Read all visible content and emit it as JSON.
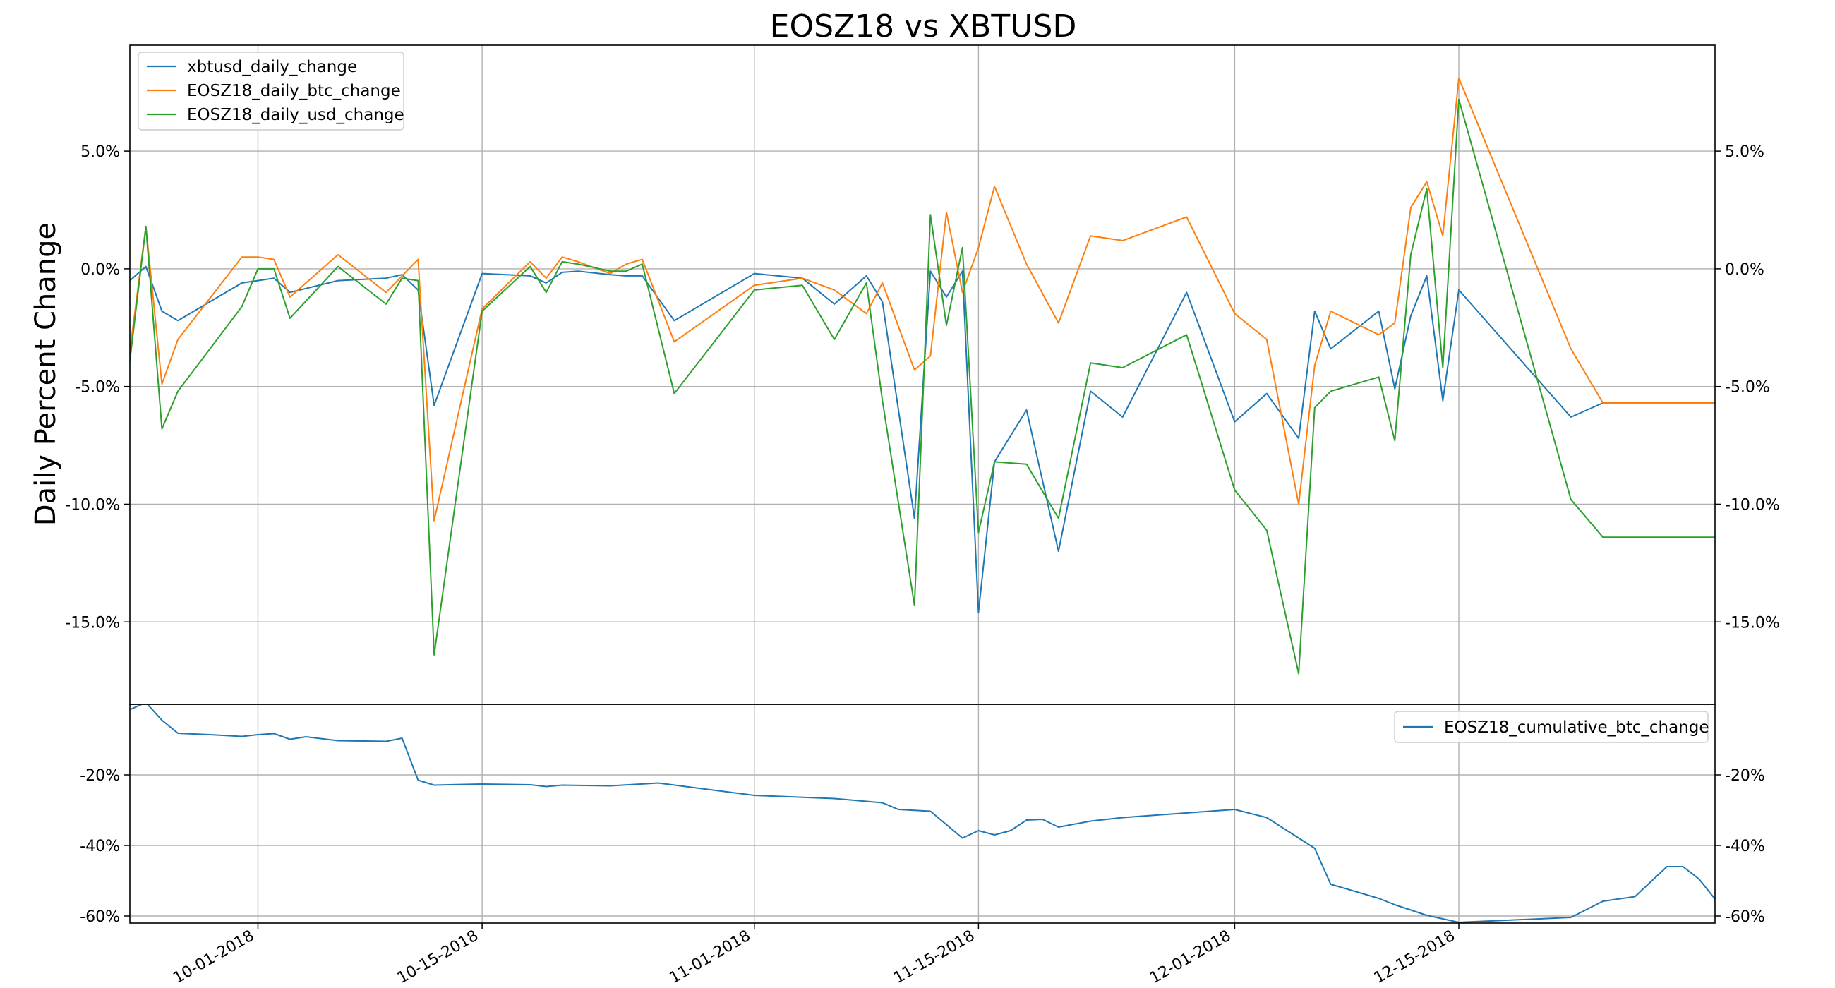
{
  "title": "EOSZ18 vs XBTUSD",
  "ylabel": "Daily Percent Change",
  "colors": {
    "xbtusd_daily_change": "#1f77b4",
    "EOSZ18_daily_btc_change": "#ff7f0e",
    "EOSZ18_daily_usd_change": "#2ca02c",
    "EOSZ18_cumulative_btc_change": "#1f77b4"
  },
  "chart_data": [
    {
      "type": "line",
      "title": "EOSZ18 vs XBTUSD",
      "ylabel": "Daily Percent Change",
      "xlim": [
        "2018-09-23",
        "2018-12-31"
      ],
      "ylim": [
        -18.5,
        9.5
      ],
      "y_tick_values": [
        5,
        0,
        -5,
        -10,
        -15
      ],
      "y_tick_labels": [
        "5.0%",
        "0.0%",
        "-5.0%",
        "-10.0%",
        "-15.0%"
      ],
      "grid": true,
      "legend_position": "upper left",
      "x": [
        "2018-09-23",
        "2018-09-24",
        "2018-09-25",
        "2018-09-26",
        "2018-09-30",
        "2018-10-01",
        "2018-10-02",
        "2018-10-03",
        "2018-10-06",
        "2018-10-09",
        "2018-10-10",
        "2018-10-11",
        "2018-10-12",
        "2018-10-15",
        "2018-10-18",
        "2018-10-19",
        "2018-10-20",
        "2018-10-21",
        "2018-10-23",
        "2018-10-24",
        "2018-10-25",
        "2018-10-27",
        "2018-11-01",
        "2018-11-04",
        "2018-11-06",
        "2018-11-08",
        "2018-11-09",
        "2018-11-11",
        "2018-11-12",
        "2018-11-13",
        "2018-11-14",
        "2018-11-15",
        "2018-11-16",
        "2018-11-18",
        "2018-11-20",
        "2018-11-22",
        "2018-11-24",
        "2018-11-28",
        "2018-12-01",
        "2018-12-03",
        "2018-12-05",
        "2018-12-06",
        "2018-12-07",
        "2018-12-10",
        "2018-12-11",
        "2018-12-12",
        "2018-12-13",
        "2018-12-14",
        "2018-12-15",
        "2018-12-22",
        "2018-12-24",
        "2018-12-26",
        "2018-12-28",
        "2018-12-29",
        "2018-12-31"
      ],
      "series": [
        {
          "name": "xbtusd_daily_change",
          "values": [
            -0.5,
            0.1,
            -1.8,
            -2.2,
            -0.6,
            -0.5,
            -0.4,
            -1.0,
            -0.5,
            -0.4,
            -0.25,
            -0.9,
            -5.8,
            -0.2,
            -0.3,
            -0.6,
            -0.15,
            -0.1,
            -0.25,
            -0.3,
            -0.3,
            -2.2,
            -0.2,
            -0.4,
            -1.5,
            -0.3,
            -1.4,
            -10.6,
            -0.1,
            -1.2,
            -0.1,
            -14.6,
            -8.2,
            -6.0,
            -12.0,
            -5.2,
            -6.3,
            -1.0,
            -6.5,
            -5.3,
            -7.2,
            -1.8,
            -3.4,
            -1.8,
            -5.1,
            -2.0,
            -0.3,
            -5.6,
            -0.9,
            -6.3,
            -5.7,
            -5.7,
            -5.7,
            -5.7,
            -5.7
          ]
        },
        {
          "name": "EOSZ18_daily_btc_change",
          "values": [
            -3.5,
            1.8,
            -4.9,
            -3.0,
            0.5,
            0.5,
            0.4,
            -1.2,
            0.6,
            -1.0,
            -0.3,
            0.4,
            -10.7,
            -1.7,
            0.3,
            -0.4,
            0.5,
            0.3,
            -0.2,
            0.2,
            0.4,
            -3.1,
            -0.7,
            -0.4,
            -0.9,
            -1.9,
            -0.6,
            -4.3,
            -3.7,
            2.4,
            -1.0,
            0.9,
            3.5,
            0.2,
            -2.3,
            1.4,
            1.2,
            2.2,
            -1.9,
            -3.0,
            -10.0,
            -4.1,
            -1.8,
            -2.8,
            -2.3,
            2.6,
            3.7,
            1.4,
            8.1,
            -3.4,
            -5.7,
            -5.7,
            -5.7,
            -5.7,
            -5.7
          ]
        },
        {
          "name": "EOSZ18_daily_usd_change",
          "values": [
            -3.9,
            1.8,
            -6.8,
            -5.2,
            -1.6,
            0.0,
            0.0,
            -2.1,
            0.1,
            -1.5,
            -0.4,
            -0.5,
            -16.4,
            -1.8,
            0.1,
            -1.0,
            0.3,
            0.2,
            -0.1,
            -0.1,
            0.2,
            -5.3,
            -0.9,
            -0.7,
            -3.0,
            -0.6,
            -5.6,
            -14.3,
            2.3,
            -2.4,
            0.9,
            -11.2,
            -8.2,
            -8.3,
            -10.6,
            -4.0,
            -4.2,
            -2.8,
            -9.4,
            -11.1,
            -17.2,
            -5.9,
            -5.2,
            -4.6,
            -7.3,
            0.6,
            3.4,
            -4.2,
            7.2,
            -9.8,
            -11.4,
            -11.4,
            -11.4,
            -11.4,
            -11.4
          ]
        }
      ]
    },
    {
      "type": "line",
      "ylim": [
        -62,
        0
      ],
      "y_tick_values": [
        -20,
        -40,
        -60
      ],
      "y_tick_labels": [
        "-20%",
        "-40%",
        "-60%"
      ],
      "grid": true,
      "legend_position": "upper right",
      "x_tick_labels": [
        "10-01-2018",
        "10-15-2018",
        "11-01-2018",
        "11-15-2018",
        "12-01-2018",
        "12-15-2018"
      ],
      "x_tick_values": [
        "2018-10-01",
        "2018-10-15",
        "2018-11-01",
        "2018-11-15",
        "2018-12-01",
        "2018-12-15"
      ],
      "x": [
        "2018-09-23",
        "2018-09-24",
        "2018-09-25",
        "2018-09-26",
        "2018-09-28",
        "2018-09-30",
        "2018-10-01",
        "2018-10-02",
        "2018-10-03",
        "2018-10-04",
        "2018-10-06",
        "2018-10-09",
        "2018-10-10",
        "2018-10-11",
        "2018-10-12",
        "2018-10-15",
        "2018-10-18",
        "2018-10-19",
        "2018-10-20",
        "2018-10-23",
        "2018-10-26",
        "2018-11-01",
        "2018-11-06",
        "2018-11-09",
        "2018-11-10",
        "2018-11-12",
        "2018-11-14",
        "2018-11-15",
        "2018-11-16",
        "2018-11-17",
        "2018-11-18",
        "2018-11-19",
        "2018-11-20",
        "2018-11-22",
        "2018-11-24",
        "2018-12-01",
        "2018-12-03",
        "2018-12-06",
        "2018-12-07",
        "2018-12-10",
        "2018-12-11",
        "2018-12-13",
        "2018-12-15",
        "2018-12-22",
        "2018-12-24",
        "2018-12-26",
        "2018-12-28",
        "2018-12-29",
        "2018-12-30",
        "2018-12-31"
      ],
      "series": [
        {
          "name": "EOSZ18_cumulative_btc_change",
          "values": [
            -1.5,
            0.5,
            -4.5,
            -8.2,
            -8.6,
            -9.1,
            -8.6,
            -8.3,
            -9.9,
            -9.2,
            -10.3,
            -10.5,
            -9.6,
            -21.5,
            -22.9,
            -22.6,
            -22.8,
            -23.3,
            -22.9,
            -23.1,
            -22.3,
            -25.8,
            -26.7,
            -27.9,
            -29.8,
            -30.3,
            -37.9,
            -35.8,
            -37.0,
            -35.8,
            -32.8,
            -32.6,
            -34.8,
            -33.1,
            -32.1,
            -29.8,
            -32.1,
            -40.8,
            -51.0,
            -55.0,
            -56.8,
            -59.8,
            -61.8,
            -60.4,
            -55.8,
            -54.5,
            -46.0,
            -46.0,
            -49.5,
            -55.2
          ]
        }
      ]
    }
  ]
}
